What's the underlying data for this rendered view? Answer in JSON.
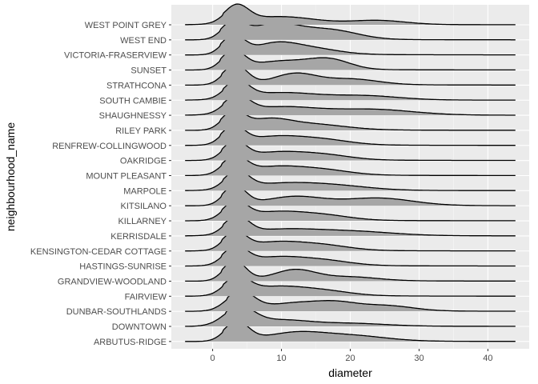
{
  "chart_data": {
    "type": "ridgeline",
    "xlabel": "diameter",
    "ylabel": "neighbourhood_name",
    "xlim": [
      -6,
      46
    ],
    "x_ticks": [
      0,
      10,
      20,
      30,
      40
    ],
    "density_range": [
      -4,
      44
    ],
    "grid": true,
    "colors": {
      "panel": "#ebebeb",
      "grid_major": "#ffffff",
      "grid_minor": "#f5f5f5",
      "fill": "#a6a6a6",
      "line": "#000000",
      "tick_text": "#4d4d4d"
    },
    "categories": [
      "WEST POINT GREY",
      "WEST END",
      "VICTORIA-FRASERVIEW",
      "SUNSET",
      "STRATHCONA",
      "SOUTH CAMBIE",
      "SHAUGHNESSY",
      "RILEY PARK",
      "RENFREW-COLLINGWOOD",
      "OAKRIDGE",
      "MOUNT PLEASANT",
      "MARPOLE",
      "KITSILANO",
      "KILLARNEY",
      "KERRISDALE",
      "KENSINGTON-CEDAR COTTAGE",
      "HASTINGS-SUNRISE",
      "GRANDVIEW-WOODLAND",
      "FAIRVIEW",
      "DUNBAR-SOUTHLANDS",
      "DOWNTOWN",
      "ARBUTUS-RIDGE"
    ],
    "series": [
      {
        "peak": 3.5,
        "width": 1.7,
        "tail": [
          [
            10,
            0.45,
            5
          ],
          [
            24,
            0.25,
            4
          ]
        ]
      },
      {
        "peak": 3.0,
        "width": 1.6,
        "tail": [
          [
            9,
            0.95,
            3.5
          ],
          [
            17,
            0.6,
            4
          ]
        ]
      },
      {
        "peak": 3.0,
        "width": 1.6,
        "tail": [
          [
            9,
            0.5,
            3
          ],
          [
            14,
            0.35,
            4
          ]
        ]
      },
      {
        "peak": 3.0,
        "width": 1.6,
        "tail": [
          [
            10,
            0.45,
            4
          ],
          [
            17,
            0.55,
            3
          ]
        ]
      },
      {
        "peak": 3.3,
        "width": 1.7,
        "tail": [
          [
            12,
            0.55,
            3
          ],
          [
            20,
            0.3,
            4
          ]
        ]
      },
      {
        "peak": 3.5,
        "width": 1.7,
        "tail": [
          [
            10,
            0.4,
            5
          ],
          [
            22,
            0.25,
            5
          ]
        ]
      },
      {
        "peak": 3.5,
        "width": 1.8,
        "tail": [
          [
            10,
            0.45,
            5
          ],
          [
            23,
            0.35,
            6
          ]
        ]
      },
      {
        "peak": 3.0,
        "width": 1.6,
        "tail": [
          [
            8,
            0.5,
            3
          ],
          [
            14,
            0.35,
            5
          ]
        ]
      },
      {
        "peak": 3.0,
        "width": 1.6,
        "tail": [
          [
            9,
            0.45,
            4
          ],
          [
            16,
            0.3,
            4
          ]
        ]
      },
      {
        "peak": 3.2,
        "width": 1.6,
        "tail": [
          [
            9,
            0.4,
            4
          ],
          [
            16,
            0.3,
            4
          ]
        ]
      },
      {
        "peak": 3.2,
        "width": 1.7,
        "tail": [
          [
            9,
            0.45,
            4
          ],
          [
            16,
            0.3,
            4
          ]
        ]
      },
      {
        "peak": 3.5,
        "width": 1.7,
        "tail": [
          [
            10,
            0.35,
            5
          ],
          [
            18,
            0.25,
            5
          ]
        ]
      },
      {
        "peak": 3.2,
        "width": 1.6,
        "tail": [
          [
            12,
            0.45,
            4
          ],
          [
            24,
            0.4,
            5
          ]
        ]
      },
      {
        "peak": 3.3,
        "width": 1.7,
        "tail": [
          [
            9,
            0.45,
            4
          ],
          [
            16,
            0.3,
            4
          ]
        ]
      },
      {
        "peak": 3.5,
        "width": 1.7,
        "tail": [
          [
            10,
            0.3,
            5
          ],
          [
            20,
            0.25,
            6
          ]
        ]
      },
      {
        "peak": 3.2,
        "width": 1.6,
        "tail": [
          [
            9,
            0.45,
            4
          ],
          [
            16,
            0.3,
            4
          ]
        ]
      },
      {
        "peak": 3.3,
        "width": 1.7,
        "tail": [
          [
            9,
            0.45,
            4
          ],
          [
            16,
            0.3,
            4
          ]
        ]
      },
      {
        "peak": 3.2,
        "width": 1.6,
        "tail": [
          [
            12,
            0.55,
            3
          ],
          [
            20,
            0.2,
            4
          ]
        ]
      },
      {
        "peak": 3.5,
        "width": 1.8,
        "tail": [
          [
            9,
            0.5,
            4
          ],
          [
            16,
            0.3,
            4
          ]
        ]
      },
      {
        "peak": 4.0,
        "width": 2.0,
        "tail": [
          [
            12,
            0.4,
            4
          ],
          [
            18,
            0.35,
            3
          ],
          [
            25,
            0.3,
            4
          ]
        ]
      },
      {
        "peak": 3.8,
        "width": 2.2,
        "tail": [
          [
            10,
            0.3,
            4
          ],
          [
            20,
            0.15,
            5
          ]
        ]
      },
      {
        "peak": 3.5,
        "width": 1.7,
        "tail": [
          [
            12,
            0.4,
            4
          ],
          [
            20,
            0.3,
            5
          ]
        ]
      }
    ]
  }
}
